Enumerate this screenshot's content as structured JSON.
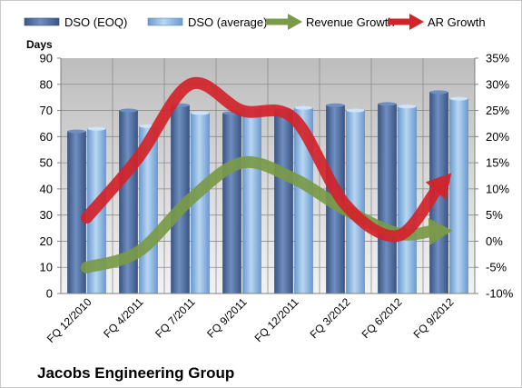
{
  "chart_data": {
    "type": "bar",
    "title": "",
    "categories": [
      "FQ 12/2010",
      "FQ 4/2011",
      "FQ 7/2011",
      "FQ 9/2011",
      "FQ 12/2011",
      "FQ 3/2012",
      "FQ 6/2012",
      "FQ 9/2012"
    ],
    "left_axis": {
      "label": "Days",
      "min": 0,
      "max": 90,
      "step": 10
    },
    "right_axis": {
      "min": -10,
      "max": 35,
      "step": 5,
      "unit": "%"
    },
    "series": [
      {
        "name": "DSO (EOQ)",
        "kind": "bar",
        "axis": "left",
        "color": "#4a6aa0",
        "values": [
          62,
          70,
          72,
          69,
          70,
          72,
          72.5,
          77
        ]
      },
      {
        "name": "DSO (average)",
        "kind": "bar",
        "axis": "left",
        "color": "#8ab4e0",
        "values": [
          63,
          64,
          69,
          71,
          71,
          70,
          71.5,
          74.5
        ]
      },
      {
        "name": "Revenue Growth",
        "kind": "arrow",
        "axis": "right",
        "color": "#7a9a48",
        "values": [
          -5,
          -2,
          8,
          15,
          12,
          6,
          1.5,
          2
        ]
      },
      {
        "name": "AR Growth",
        "kind": "arrow",
        "axis": "right",
        "color": "#d2232a",
        "values": [
          4.5,
          16,
          30,
          25,
          23.5,
          7,
          1,
          12.5
        ]
      }
    ],
    "legend_position": "top",
    "grid": true
  },
  "company_name": "Jacobs Engineering Group"
}
